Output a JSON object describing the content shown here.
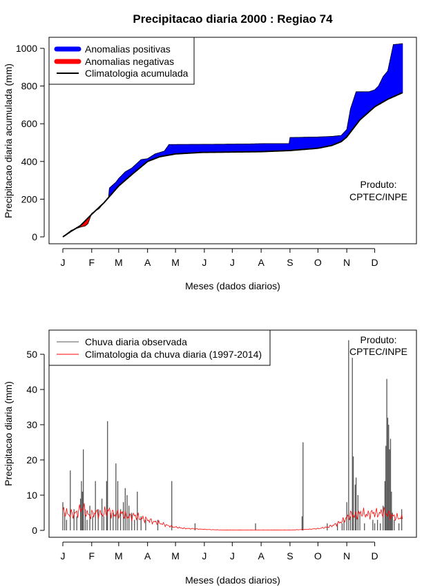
{
  "title": "Precipitacao diaria 2000 : Regiao 74",
  "colors": {
    "positive": "#0000ff",
    "negative": "#ff0000",
    "clim_line": "#000000",
    "obs_bar": "#555555",
    "clim_daily": "#ff0000"
  },
  "chart_data": [
    {
      "type": "area",
      "ylabel": "Precipitacao diaria acumulada (mm)",
      "xlabel": "Meses (dados diarios)",
      "xlim": [
        1,
        366
      ],
      "ylim": [
        0,
        1030
      ],
      "yticks": [
        0,
        200,
        400,
        600,
        800,
        1000
      ],
      "month_labels": [
        "J",
        "F",
        "M",
        "A",
        "M",
        "J",
        "J",
        "A",
        "S",
        "O",
        "N",
        "D"
      ],
      "month_days": [
        1,
        32,
        61,
        92,
        122,
        153,
        183,
        214,
        245,
        275,
        306,
        336
      ],
      "legend": [
        "Anomalias positivas",
        "Anomalias negativas",
        "Climatologia acumulada"
      ],
      "annotation": [
        "Produto:",
        "CPTEC/INPE"
      ],
      "series": [
        {
          "name": "Climatologia acumulada",
          "points": [
            [
              1,
              0
            ],
            [
              10,
              30
            ],
            [
              20,
              60
            ],
            [
              32,
              120
            ],
            [
              45,
              180
            ],
            [
              61,
              270
            ],
            [
              75,
              330
            ],
            [
              92,
              400
            ],
            [
              105,
              425
            ],
            [
              122,
              440
            ],
            [
              150,
              448
            ],
            [
              183,
              450
            ],
            [
              214,
              452
            ],
            [
              245,
              458
            ],
            [
              275,
              470
            ],
            [
              290,
              485
            ],
            [
              300,
              505
            ],
            [
              306,
              530
            ],
            [
              320,
              620
            ],
            [
              336,
              690
            ],
            [
              350,
              730
            ],
            [
              366,
              765
            ]
          ]
        },
        {
          "name": "Precipitacao observada acumulada",
          "points": [
            [
              1,
              0
            ],
            [
              10,
              35
            ],
            [
              20,
              52
            ],
            [
              25,
              58
            ],
            [
              28,
              70
            ],
            [
              32,
              125
            ],
            [
              40,
              150
            ],
            [
              45,
              180
            ],
            [
              50,
              205
            ],
            [
              50,
              255
            ],
            [
              58,
              290
            ],
            [
              61,
              310
            ],
            [
              68,
              345
            ],
            [
              75,
              365
            ],
            [
              85,
              410
            ],
            [
              92,
              415
            ],
            [
              100,
              440
            ],
            [
              110,
              455
            ],
            [
              115,
              490
            ],
            [
              122,
              490
            ],
            [
              180,
              492
            ],
            [
              200,
              493
            ],
            [
              220,
              495
            ],
            [
              244,
              495
            ],
            [
              244,
              527
            ],
            [
              275,
              530
            ],
            [
              290,
              533
            ],
            [
              300,
              538
            ],
            [
              306,
              570
            ],
            [
              310,
              680
            ],
            [
              316,
              770
            ],
            [
              330,
              770
            ],
            [
              336,
              780
            ],
            [
              340,
              800
            ],
            [
              345,
              850
            ],
            [
              350,
              880
            ],
            [
              356,
              1020
            ],
            [
              366,
              1025
            ]
          ]
        }
      ]
    },
    {
      "type": "bar",
      "ylabel": "Precipitacao diaria (mm)",
      "xlabel": "Meses (dados diarios)",
      "xlim": [
        1,
        366
      ],
      "ylim": [
        0,
        55
      ],
      "yticks": [
        0,
        10,
        20,
        30,
        40,
        50
      ],
      "month_labels": [
        "J",
        "F",
        "M",
        "A",
        "M",
        "J",
        "J",
        "A",
        "S",
        "O",
        "N",
        "D"
      ],
      "month_days": [
        1,
        32,
        61,
        92,
        122,
        153,
        183,
        214,
        245,
        275,
        306,
        336
      ],
      "legend": [
        "Chuva diaria observada",
        "Climatologia da chuva diaria (1997-2014)"
      ],
      "annotation": [
        "Produto:",
        "CPTEC/INPE"
      ],
      "observed": [
        [
          1,
          8
        ],
        [
          3,
          5
        ],
        [
          5,
          3
        ],
        [
          9,
          17
        ],
        [
          13,
          6
        ],
        [
          16,
          4
        ],
        [
          20,
          9
        ],
        [
          21,
          14
        ],
        [
          22,
          11
        ],
        [
          23,
          23
        ],
        [
          25,
          6
        ],
        [
          27,
          3
        ],
        [
          30,
          7
        ],
        [
          33,
          4
        ],
        [
          36,
          14
        ],
        [
          39,
          6
        ],
        [
          43,
          9
        ],
        [
          45,
          4
        ],
        [
          48,
          14
        ],
        [
          49,
          31
        ],
        [
          52,
          5
        ],
        [
          55,
          5
        ],
        [
          58,
          19
        ],
        [
          60,
          14
        ],
        [
          63,
          6
        ],
        [
          66,
          8
        ],
        [
          68,
          12
        ],
        [
          70,
          10
        ],
        [
          72,
          7
        ],
        [
          75,
          5
        ],
        [
          78,
          3
        ],
        [
          81,
          11
        ],
        [
          85,
          4
        ],
        [
          90,
          3
        ],
        [
          103,
          3
        ],
        [
          118,
          14
        ],
        [
          143,
          2
        ],
        [
          208,
          2
        ],
        [
          258,
          4
        ],
        [
          259,
          25
        ],
        [
          285,
          2
        ],
        [
          296,
          2
        ],
        [
          301,
          2
        ],
        [
          303,
          3
        ],
        [
          306,
          8
        ],
        [
          308,
          54
        ],
        [
          310,
          4
        ],
        [
          312,
          49
        ],
        [
          313,
          21
        ],
        [
          315,
          13
        ],
        [
          316,
          15
        ],
        [
          318,
          10
        ],
        [
          320,
          5
        ],
        [
          325,
          2
        ],
        [
          334,
          3
        ],
        [
          336,
          2
        ],
        [
          339,
          3
        ],
        [
          342,
          2
        ],
        [
          345,
          7
        ],
        [
          347,
          14
        ],
        [
          348,
          24
        ],
        [
          349,
          43
        ],
        [
          350,
          32
        ],
        [
          351,
          30
        ],
        [
          352,
          23
        ],
        [
          353,
          26
        ],
        [
          354,
          11
        ],
        [
          355,
          5
        ],
        [
          357,
          3
        ],
        [
          362,
          2
        ],
        [
          365,
          6
        ]
      ],
      "climatology_daily": [
        [
          1,
          5.5
        ],
        [
          8,
          4.5
        ],
        [
          15,
          4.8
        ],
        [
          22,
          6.5
        ],
        [
          29,
          4.2
        ],
        [
          36,
          5.0
        ],
        [
          43,
          4.6
        ],
        [
          50,
          5.6
        ],
        [
          57,
          4.4
        ],
        [
          64,
          4.8
        ],
        [
          71,
          3.8
        ],
        [
          78,
          4.2
        ],
        [
          85,
          3.4
        ],
        [
          92,
          3.0
        ],
        [
          99,
          2.4
        ],
        [
          106,
          2.0
        ],
        [
          113,
          1.4
        ],
        [
          120,
          1.0
        ],
        [
          130,
          0.6
        ],
        [
          145,
          0.4
        ],
        [
          160,
          0.2
        ],
        [
          175,
          0.1
        ],
        [
          190,
          0.1
        ],
        [
          210,
          0.1
        ],
        [
          230,
          0.1
        ],
        [
          245,
          0.1
        ],
        [
          255,
          0.2
        ],
        [
          265,
          0.3
        ],
        [
          275,
          0.5
        ],
        [
          285,
          0.9
        ],
        [
          292,
          1.5
        ],
        [
          298,
          2.2
        ],
        [
          304,
          3.0
        ],
        [
          310,
          4.5
        ],
        [
          316,
          4.2
        ],
        [
          322,
          5.0
        ],
        [
          328,
          4.4
        ],
        [
          334,
          5.0
        ],
        [
          340,
          4.7
        ],
        [
          346,
          5.2
        ],
        [
          352,
          4.4
        ],
        [
          358,
          3.8
        ],
        [
          366,
          3.4
        ]
      ]
    }
  ]
}
